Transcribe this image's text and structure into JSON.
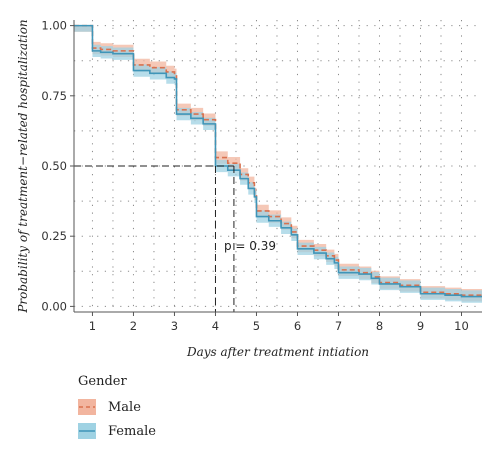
{
  "chart_data": {
    "type": "step",
    "ylabel": "Probability of treatment−related hospitalization",
    "xlabel": "Days after treatment intiation",
    "xlim": [
      0.55,
      10.5
    ],
    "ylim": [
      -0.02,
      1.02
    ],
    "xticks": [
      1,
      2,
      3,
      4,
      5,
      6,
      7,
      8,
      9,
      10
    ],
    "yticks": [
      0.0,
      0.25,
      0.5,
      0.75,
      1.0
    ],
    "ytick_labels": [
      "0.00",
      "0.25",
      "0.50",
      "0.75",
      "1.00"
    ],
    "grid": "dotted",
    "legend_position": "bottom-left",
    "legend_title": "Gender",
    "annotation": "p = 0.39",
    "median_line_y": 0.5,
    "median_x": {
      "Female": 4.0,
      "Male": 4.45
    },
    "series": [
      {
        "name": "Male",
        "color": "#d9714e",
        "band_color": "#f2b59f",
        "style": "dashed",
        "x": [
          0.55,
          1.0,
          1.2,
          1.5,
          2.0,
          2.4,
          2.8,
          3.0,
          3.05,
          3.4,
          3.7,
          4.0,
          4.3,
          4.6,
          4.8,
          4.95,
          5.0,
          5.3,
          5.6,
          5.85,
          6.0,
          6.4,
          6.7,
          6.9,
          7.0,
          7.5,
          7.8,
          8.0,
          8.5,
          9.0,
          9.6,
          10.0,
          10.5
        ],
        "y": [
          1.0,
          0.92,
          0.915,
          0.91,
          0.86,
          0.85,
          0.835,
          0.825,
          0.7,
          0.685,
          0.665,
          0.53,
          0.51,
          0.47,
          0.44,
          0.4,
          0.34,
          0.32,
          0.295,
          0.265,
          0.215,
          0.2,
          0.18,
          0.165,
          0.13,
          0.12,
          0.105,
          0.085,
          0.075,
          0.05,
          0.045,
          0.04,
          0.04
        ]
      },
      {
        "name": "Female",
        "color": "#3f95b8",
        "band_color": "#9fd2e3",
        "style": "solid",
        "x": [
          0.55,
          1.0,
          1.2,
          1.5,
          2.0,
          2.4,
          2.8,
          3.0,
          3.05,
          3.4,
          3.7,
          4.0,
          4.3,
          4.6,
          4.8,
          4.95,
          5.0,
          5.3,
          5.6,
          5.85,
          6.0,
          6.4,
          6.7,
          6.9,
          7.0,
          7.5,
          7.8,
          8.0,
          8.5,
          9.0,
          9.6,
          10.0,
          10.5
        ],
        "y": [
          1.0,
          0.91,
          0.905,
          0.9,
          0.84,
          0.83,
          0.815,
          0.81,
          0.685,
          0.67,
          0.65,
          0.5,
          0.485,
          0.455,
          0.42,
          0.39,
          0.32,
          0.305,
          0.28,
          0.255,
          0.205,
          0.19,
          0.17,
          0.155,
          0.12,
          0.115,
          0.1,
          0.08,
          0.07,
          0.045,
          0.04,
          0.035,
          0.035
        ]
      }
    ]
  }
}
